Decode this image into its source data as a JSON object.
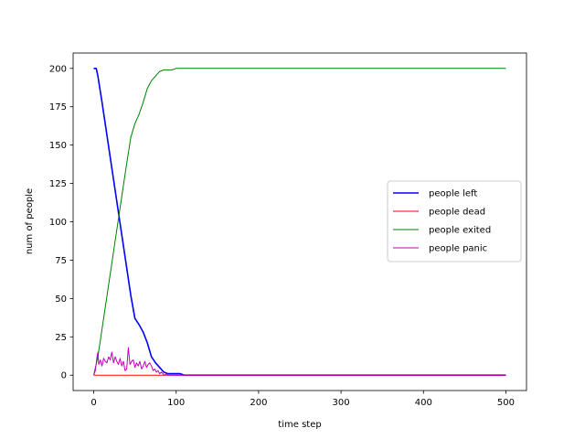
{
  "chart_data": {
    "type": "line",
    "title": "",
    "xlabel": "time step",
    "ylabel": "num of people",
    "xlim": [
      -25,
      525
    ],
    "ylim": [
      -10,
      210
    ],
    "xticks": [
      0,
      100,
      200,
      300,
      400,
      500
    ],
    "yticks": [
      0,
      25,
      50,
      75,
      100,
      125,
      150,
      175,
      200
    ],
    "grid": false,
    "legend_position": "center-right",
    "series": [
      {
        "name": "people left",
        "color": "#0000ff",
        "x": [
          0,
          3,
          5,
          10,
          15,
          20,
          25,
          30,
          35,
          40,
          45,
          50,
          55,
          60,
          65,
          70,
          75,
          80,
          85,
          90,
          95,
          100,
          105,
          110,
          200,
          300,
          400,
          500
        ],
        "y": [
          200,
          200,
          195,
          178,
          160,
          142,
          124,
          106,
          88,
          70,
          52,
          37,
          33,
          28,
          21,
          12,
          8,
          5,
          2,
          1,
          1,
          1,
          1,
          0,
          0,
          0,
          0,
          0
        ]
      },
      {
        "name": "people dead",
        "color": "#ff0000",
        "x": [
          0,
          500
        ],
        "y": [
          0,
          0
        ]
      },
      {
        "name": "people exited",
        "color": "#008000",
        "x": [
          0,
          5,
          10,
          15,
          20,
          25,
          30,
          35,
          40,
          45,
          50,
          55,
          60,
          65,
          70,
          75,
          80,
          85,
          90,
          95,
          100,
          105,
          110,
          200,
          300,
          400,
          500
        ],
        "y": [
          0,
          12,
          30,
          48,
          66,
          84,
          102,
          120,
          138,
          155,
          164,
          170,
          178,
          187,
          192,
          195,
          198,
          199,
          199,
          199,
          200,
          200,
          200,
          200,
          200,
          200,
          200
        ]
      },
      {
        "name": "people panic",
        "color": "#bf00bf",
        "x": [
          0,
          2,
          4,
          5,
          6,
          8,
          10,
          12,
          14,
          16,
          18,
          20,
          22,
          24,
          26,
          28,
          30,
          32,
          34,
          36,
          38,
          40,
          42,
          44,
          46,
          48,
          50,
          52,
          54,
          56,
          58,
          60,
          62,
          64,
          66,
          68,
          70,
          72,
          74,
          76,
          78,
          80,
          82,
          84,
          86,
          88,
          90,
          100,
          200,
          300,
          400,
          500
        ],
        "y": [
          0,
          3,
          12,
          15,
          7,
          10,
          6,
          11,
          9,
          8,
          12,
          10,
          15,
          8,
          12,
          9,
          7,
          11,
          6,
          9,
          3,
          4,
          18,
          7,
          9,
          10,
          5,
          8,
          6,
          9,
          4,
          6,
          9,
          5,
          7,
          8,
          6,
          3,
          4,
          2,
          3,
          1,
          2,
          1,
          0,
          1,
          0,
          0,
          0,
          0,
          0,
          0
        ]
      }
    ]
  }
}
